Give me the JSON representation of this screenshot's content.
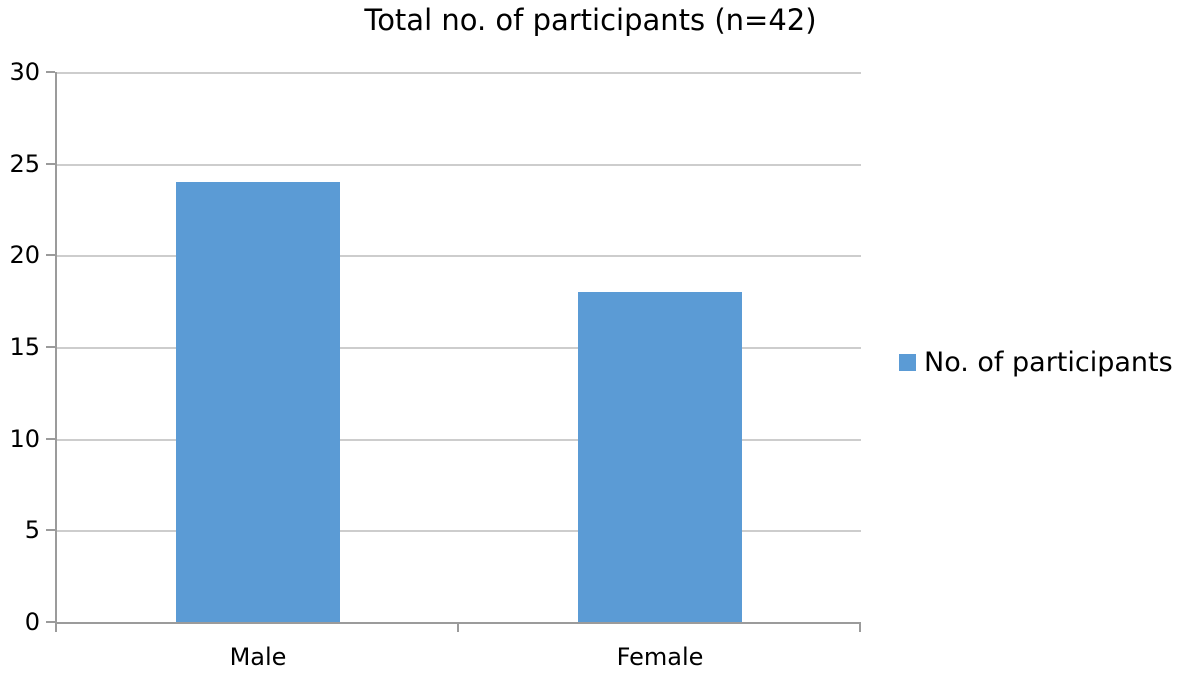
{
  "chart_data": {
    "type": "bar",
    "title": "Total no. of participants (n=42)",
    "categories": [
      "Male",
      "Female"
    ],
    "series": [
      {
        "name": "No. of participants",
        "values": [
          24,
          18
        ]
      }
    ],
    "xlabel": "",
    "ylabel": "",
    "ylim": [
      0,
      30
    ],
    "yticks": [
      0,
      5,
      10,
      15,
      20,
      25,
      30
    ],
    "grid": true,
    "legend_position": "right",
    "colors": {
      "bar": "#5B9BD5",
      "gridline": "#CDCDCD",
      "axis": "#9B9B9B",
      "text": "#000000",
      "background": "#FFFFFF"
    }
  }
}
